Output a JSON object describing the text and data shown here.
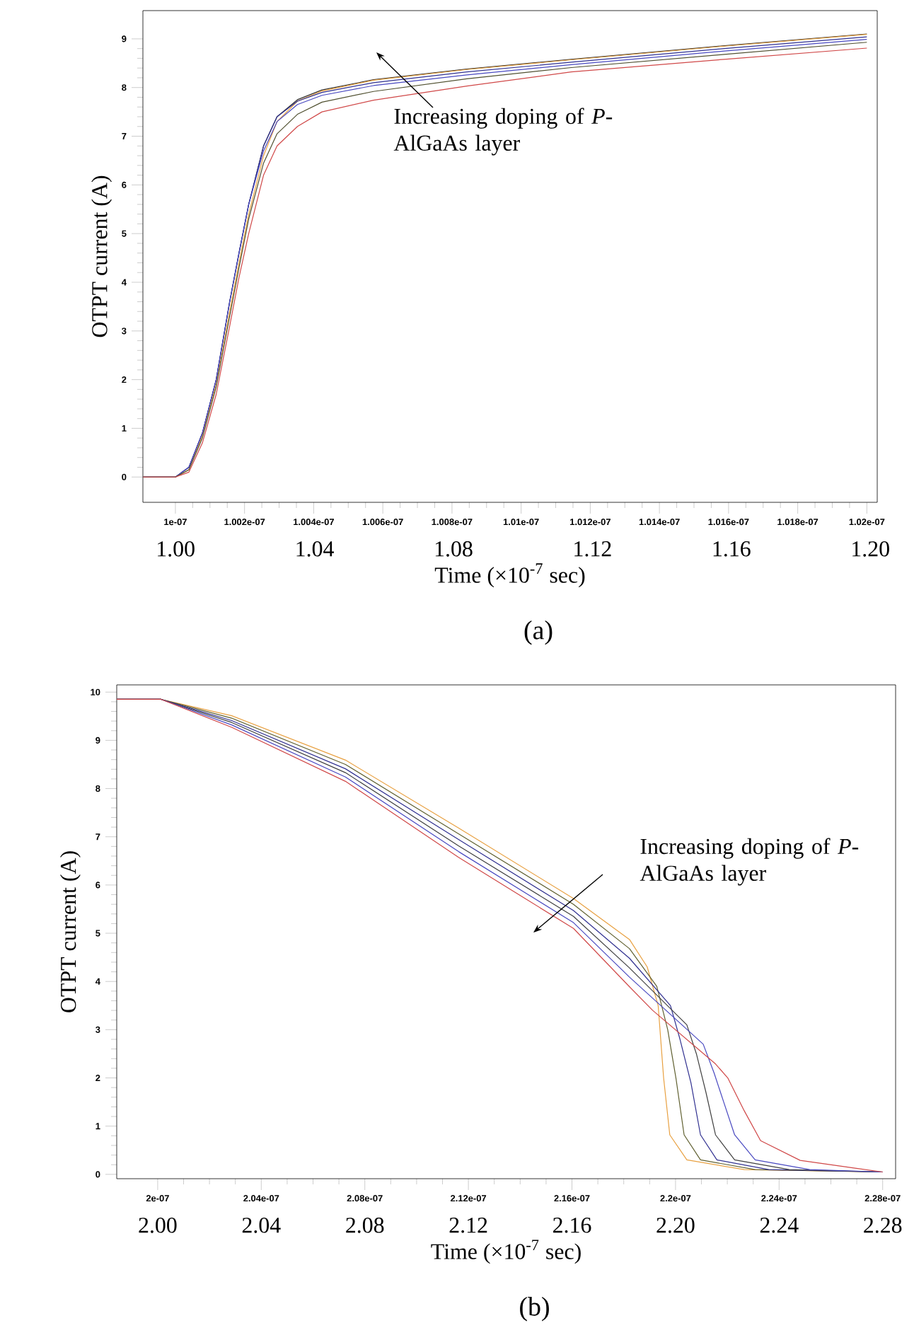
{
  "chart_data": [
    {
      "type": "line",
      "title": "(a)",
      "ylabel": "OTPT current (A)",
      "x2label": "Time (×10$^{-7}$ sec)",
      "annotations": [
        "Increasing doping of *P*-AlGaAs layer"
      ],
      "x": [
        9.9906e-08,
        1e-07,
        1.00039e-07,
        1.00078e-07,
        1.00118e-07,
        1.00157e-07,
        1.00184e-07,
        1.00212e-07,
        1.00255e-07,
        1.00294e-07,
        1.00353e-07,
        1.00424e-07,
        1.00573e-07,
        1.00843e-07,
        1.01145e-07,
        1.01588e-07,
        1.02e-07
      ],
      "xlim": [
        9.9906e-08,
        1.0203e-07
      ],
      "xticks": [
        {
          "value": 1e-07,
          "label": "1e-07"
        },
        {
          "value": 1.002e-07,
          "label": "1.002e-07"
        },
        {
          "value": 1.004e-07,
          "label": "1.004e-07"
        },
        {
          "value": 1.006e-07,
          "label": "1.006e-07"
        },
        {
          "value": 1.008e-07,
          "label": "1.008e-07"
        },
        {
          "value": 1.01e-07,
          "label": "1.01e-07"
        },
        {
          "value": 1.012e-07,
          "label": "1.012e-07"
        },
        {
          "value": 1.014e-07,
          "label": "1.014e-07"
        },
        {
          "value": 1.016e-07,
          "label": "1.016e-07"
        },
        {
          "value": 1.018e-07,
          "label": "1.018e-07"
        },
        {
          "value": 1.02e-07,
          "label": "1.02e-07"
        }
      ],
      "x2lim": [
        0.9906,
        1.202
      ],
      "x2ticks": [
        {
          "value": 1.0,
          "label": "1.00"
        },
        1.04,
        1.08,
        1.12,
        1.16,
        {
          "value": 1.2,
          "label": "1.20"
        }
      ],
      "ylim": [
        -0.52,
        9.58
      ],
      "yticks": [
        0,
        1,
        2,
        3,
        4,
        5,
        6,
        7,
        8,
        9
      ],
      "series": [
        {
          "color": "#303030",
          "values": [
            0,
            0,
            0.2,
            0.9,
            2.0,
            3.6,
            4.6,
            5.6,
            6.8,
            7.4,
            7.75,
            7.95,
            8.16,
            8.38,
            8.58,
            8.86,
            9.1
          ]
        },
        {
          "color": "#e8a040",
          "values": [
            0,
            0,
            0.15,
            0.85,
            1.9,
            3.4,
            4.4,
            5.4,
            6.6,
            7.3,
            7.72,
            7.93,
            8.15,
            8.37,
            8.57,
            8.85,
            9.09
          ]
        },
        {
          "color": "#303090",
          "values": [
            0,
            0,
            0.2,
            0.9,
            2.0,
            3.6,
            4.6,
            5.6,
            6.8,
            7.4,
            7.72,
            7.9,
            8.1,
            8.32,
            8.52,
            8.8,
            9.04
          ]
        },
        {
          "color": "#4848c0",
          "values": [
            0,
            0,
            0.2,
            0.9,
            2.0,
            3.6,
            4.6,
            5.6,
            6.7,
            7.3,
            7.65,
            7.84,
            8.04,
            8.26,
            8.47,
            8.75,
            8.99
          ]
        },
        {
          "color": "#505030",
          "values": [
            0,
            0,
            0.15,
            0.8,
            1.85,
            3.3,
            4.3,
            5.3,
            6.45,
            7.05,
            7.45,
            7.7,
            7.92,
            8.18,
            8.41,
            8.68,
            8.93
          ]
        },
        {
          "color": "#d04848",
          "values": [
            0,
            0,
            0.1,
            0.7,
            1.7,
            3.1,
            4.1,
            5.0,
            6.2,
            6.8,
            7.2,
            7.5,
            7.74,
            8.03,
            8.32,
            8.58,
            8.81
          ]
        }
      ]
    },
    {
      "type": "line",
      "title": "(b)",
      "ylabel": "OTPT current (A)",
      "x2label": "Time (×10$^{-7}$ sec)",
      "annotations": [
        "Increasing doping of *P*-AlGaAs layer"
      ],
      "xlim": [
        1.98418e-07,
        2.285e-07
      ],
      "xticks": [
        {
          "value": 2e-07,
          "label": "2e-07"
        },
        {
          "value": 2.04e-07,
          "label": "2.04e-07"
        },
        {
          "value": 2.08e-07,
          "label": "2.08e-07"
        },
        {
          "value": 2.12e-07,
          "label": "2.12e-07"
        },
        {
          "value": 2.16e-07,
          "label": "2.16e-07"
        },
        {
          "value": 2.2e-07,
          "label": "2.2e-07"
        },
        {
          "value": 2.24e-07,
          "label": "2.24e-07"
        },
        {
          "value": 2.28e-07,
          "label": "2.28e-07"
        }
      ],
      "x2lim": [
        1.98418,
        2.285
      ],
      "x2ticks": [
        {
          "value": 2.0,
          "label": "2.00"
        },
        2.04,
        2.08,
        2.12,
        2.16,
        {
          "value": 2.2,
          "label": "2.20"
        },
        2.24,
        2.28
      ],
      "ylim": [
        -0.09,
        10.15
      ],
      "yticks": [
        0,
        1,
        2,
        3,
        4,
        5,
        6,
        7,
        8,
        9,
        10
      ],
      "series": [
        {
          "color": "#e8a040",
          "x": [
            1.98418e-07,
            2.00132e-07,
            2.02859e-07,
            2.07252e-07,
            2.11629e-07,
            2.16059e-07,
            2.18222e-07,
            2.18907e-07,
            2.19329e-07,
            2.1954e-07,
            2.19778e-07,
            2.20437e-07,
            2.22652e-07,
            2.28e-07
          ],
          "values": [
            9.85,
            9.85,
            9.51,
            8.59,
            7.18,
            5.72,
            4.87,
            4.3,
            3.5,
            2.0,
            0.82,
            0.3,
            0.1,
            0.05
          ]
        },
        {
          "color": "#606030",
          "x": [
            1.98418e-07,
            2.00132e-07,
            2.02859e-07,
            2.07252e-07,
            2.11629e-07,
            2.16059e-07,
            2.18222e-07,
            2.19276e-07,
            2.19698e-07,
            2.20015e-07,
            2.20331e-07,
            2.20964e-07,
            2.23074e-07,
            2.28e-07
          ],
          "values": [
            9.85,
            9.85,
            9.46,
            8.5,
            7.06,
            5.6,
            4.68,
            3.9,
            3.0,
            2.0,
            0.82,
            0.3,
            0.1,
            0.05
          ]
        },
        {
          "color": "#303090",
          "x": [
            1.98418e-07,
            2.00132e-07,
            2.02859e-07,
            2.07252e-07,
            2.11629e-07,
            2.16059e-07,
            2.18222e-07,
            2.19804e-07,
            2.20173e-07,
            2.20595e-07,
            2.20964e-07,
            2.21597e-07,
            2.23601e-07,
            2.28e-07
          ],
          "values": [
            9.85,
            9.85,
            9.41,
            8.41,
            6.94,
            5.47,
            4.48,
            3.5,
            2.8,
            1.9,
            0.82,
            0.3,
            0.1,
            0.05
          ]
        },
        {
          "color": "#404040",
          "x": [
            1.98418e-07,
            2.00132e-07,
            2.02859e-07,
            2.07252e-07,
            2.11629e-07,
            2.16059e-07,
            2.18222e-07,
            2.20437e-07,
            2.20806e-07,
            2.21175e-07,
            2.21544e-07,
            2.22282e-07,
            2.24392e-07,
            2.28e-07
          ],
          "values": [
            9.85,
            9.85,
            9.37,
            8.33,
            6.81,
            5.35,
            4.28,
            3.1,
            2.5,
            1.7,
            0.82,
            0.3,
            0.1,
            0.05
          ]
        },
        {
          "color": "#4848c0",
          "x": [
            1.98418e-07,
            2.00132e-07,
            2.02859e-07,
            2.07252e-07,
            2.11629e-07,
            2.16059e-07,
            2.18222e-07,
            2.21069e-07,
            2.21491e-07,
            2.2186e-07,
            2.22282e-07,
            2.23074e-07,
            2.25183e-07,
            2.28e-07
          ],
          "values": [
            9.85,
            9.85,
            9.32,
            8.24,
            6.69,
            5.22,
            4.09,
            2.7,
            2.1,
            1.5,
            0.82,
            0.3,
            0.1,
            0.05
          ]
        },
        {
          "color": "#d04848",
          "x": [
            1.98418e-07,
            2.00132e-07,
            2.02859e-07,
            2.07252e-07,
            2.11629e-07,
            2.16059e-07,
            2.18222e-07,
            2.19118e-07,
            2.21544e-07,
            2.22018e-07,
            2.22652e-07,
            2.23285e-07,
            2.24814e-07,
            2.27029e-07,
            2.28e-07
          ],
          "values": [
            9.85,
            9.85,
            9.27,
            8.15,
            6.57,
            5.1,
            3.89,
            3.4,
            2.29,
            2.0,
            1.32,
            0.7,
            0.29,
            0.12,
            0.05
          ]
        }
      ]
    }
  ]
}
